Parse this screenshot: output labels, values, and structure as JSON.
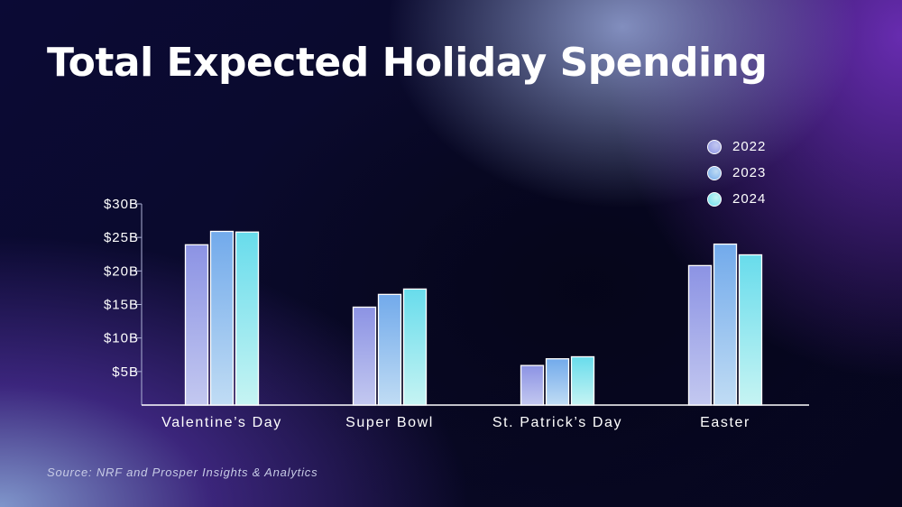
{
  "title": "Total Expected Holiday Spending",
  "source": "Source: NRF and Prosper Insights & Analytics",
  "colors": {
    "2022": [
      "#8c93e4",
      "#c3c8f0"
    ],
    "2023": [
      "#72aaeb",
      "#c0dcf4"
    ],
    "2024": [
      "#68dcec",
      "#c6f4f3"
    ]
  },
  "chart_data": {
    "type": "bar",
    "title": "Total Expected Holiday Spending",
    "categories": [
      "Valentine’s Day",
      "Super Bowl",
      "St. Patrick’s Day",
      "Easter"
    ],
    "series": [
      {
        "name": "2022",
        "values": [
          23.9,
          14.6,
          5.9,
          20.8
        ]
      },
      {
        "name": "2023",
        "values": [
          25.9,
          16.5,
          6.9,
          24.0
        ]
      },
      {
        "name": "2024",
        "values": [
          25.8,
          17.3,
          7.2,
          22.4
        ]
      }
    ],
    "ylim": [
      0,
      30
    ],
    "yticks": [
      5,
      10,
      15,
      20,
      25,
      30
    ],
    "ytick_labels": [
      "$5B",
      "$10B",
      "$15B",
      "$20B",
      "$25B",
      "$30B"
    ],
    "xlabel": "",
    "ylabel": "",
    "grid": false,
    "legend": "top-right"
  }
}
